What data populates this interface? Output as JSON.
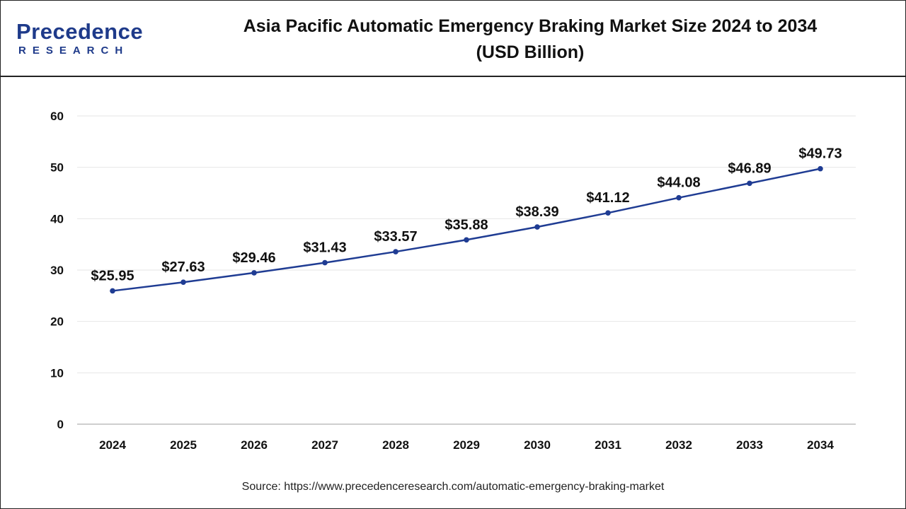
{
  "logo": {
    "name": "Precedence",
    "sub": "RESEARCH",
    "colors": {
      "brand": "#1e3a8a"
    }
  },
  "header": {
    "title_line1": "Asia Pacific Automatic Emergency Braking Market Size 2024 to 2034",
    "title_line2": "(USD Billion)"
  },
  "source": "Source: https://www.precedenceresearch.com/automatic-emergency-braking-market",
  "chart_data": {
    "type": "line",
    "title": "Asia Pacific Automatic Emergency Braking Market Size 2024 to 2034 (USD Billion)",
    "categories": [
      "2024",
      "2025",
      "2026",
      "2027",
      "2028",
      "2029",
      "2030",
      "2031",
      "2032",
      "2033",
      "2034"
    ],
    "series": [
      {
        "values": [
          25.95,
          27.63,
          29.46,
          31.43,
          33.57,
          35.88,
          38.39,
          41.12,
          44.08,
          46.89,
          49.73
        ],
        "labels": [
          "$25.95",
          "$27.63",
          "$29.46",
          "$31.43",
          "$33.57",
          "$35.88",
          "$38.39",
          "$41.12",
          "$44.08",
          "$46.89",
          "$49.73"
        ],
        "color": "#1f3c93"
      }
    ],
    "ylim": [
      0,
      60
    ],
    "yticks": [
      0,
      10,
      20,
      30,
      40,
      50,
      60
    ],
    "xlabel": "",
    "ylabel": "",
    "grid": true,
    "legend": "none"
  }
}
